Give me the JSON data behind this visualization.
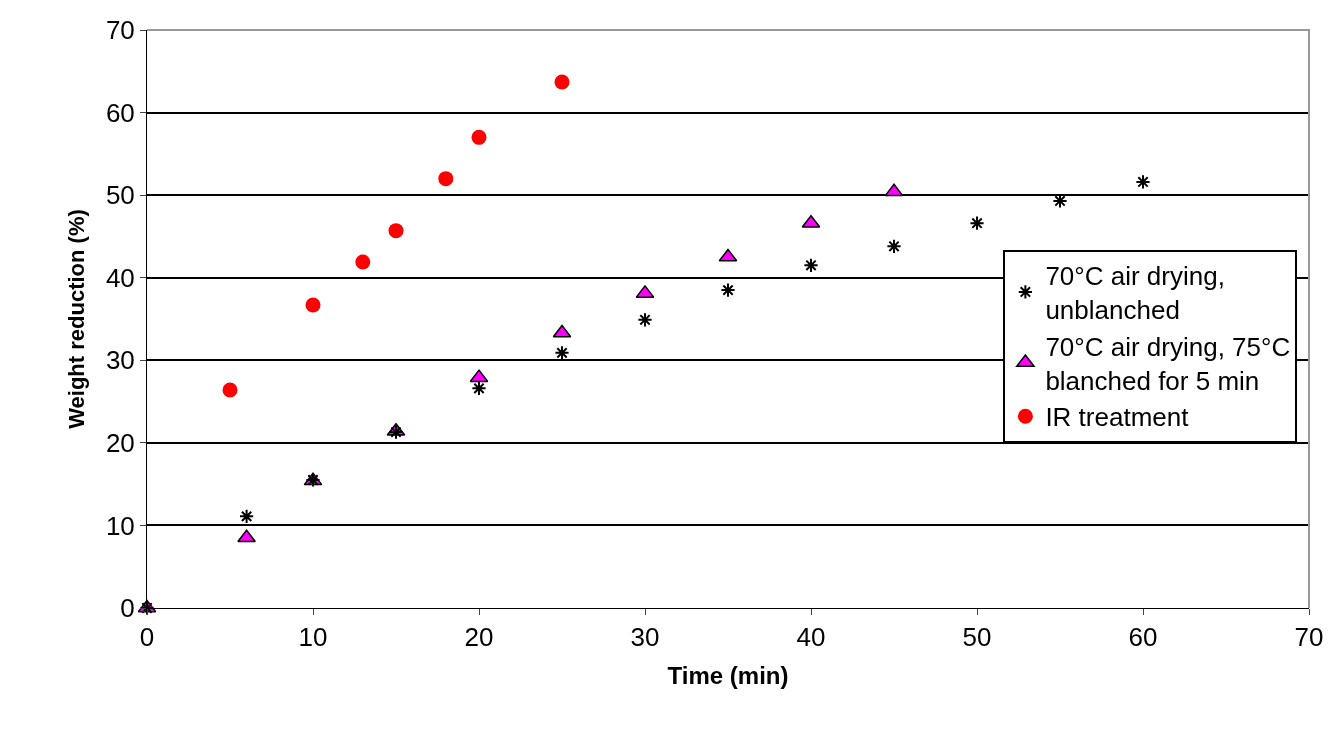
{
  "chart_data": {
    "type": "scatter",
    "xlabel": "Time (min)",
    "ylabel": "Weight reduction (%)",
    "xlim": [
      0,
      70
    ],
    "xticks": [
      0,
      10,
      20,
      30,
      40,
      50,
      60,
      70
    ],
    "ylim": [
      0,
      70
    ],
    "yticks": [
      0,
      10,
      20,
      30,
      40,
      50,
      60,
      70
    ],
    "grid": "y",
    "legend": "right",
    "series": [
      {
        "name": "70°C air drying, unblanched",
        "color": "#000000",
        "marker": "cross",
        "x": [
          0,
          6,
          10,
          15,
          20,
          25,
          30,
          35,
          40,
          45,
          50,
          55,
          60
        ],
        "values": [
          0,
          11.1,
          15.5,
          21.3,
          26.6,
          30.9,
          34.9,
          38.5,
          41.5,
          43.8,
          46.6,
          49.3,
          51.6
        ]
      },
      {
        "name": "70°C air drying, 75°C blanched for 5 min",
        "color": "#ff00ff",
        "marker": "triangle",
        "x": [
          0,
          6,
          10,
          15,
          20,
          25,
          30,
          35,
          40,
          45
        ],
        "values": [
          0,
          8.5,
          15.4,
          21.4,
          27.9,
          33.3,
          38.1,
          42.5,
          46.6,
          50.4
        ]
      },
      {
        "name": "IR treatment",
        "color": "#ff0000",
        "marker": "circle",
        "x": [
          5,
          10,
          13,
          15,
          18,
          20,
          25
        ],
        "values": [
          26.4,
          36.7,
          41.9,
          45.7,
          52.0,
          57.0,
          63.7
        ]
      }
    ]
  }
}
